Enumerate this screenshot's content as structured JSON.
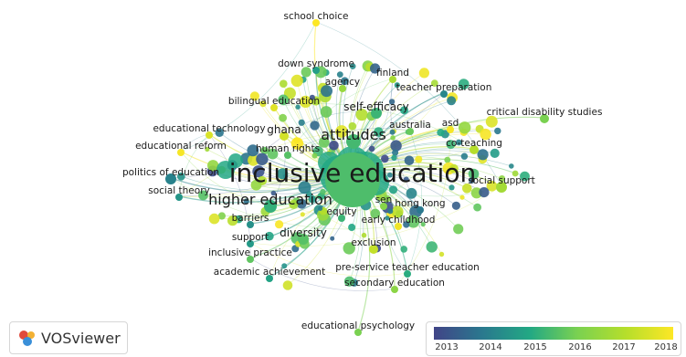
{
  "nodes": [
    {
      "id": "inclusive-education",
      "label": "inclusive education",
      "size": "huge",
      "year": 2015.5
    },
    {
      "id": "higher-education",
      "label": "higher education",
      "size": "big",
      "year": 2015.2
    },
    {
      "id": "attitudes",
      "label": "attitudes",
      "size": "big",
      "year": 2015.4
    },
    {
      "id": "self-efficacy",
      "label": "self-efficacy",
      "size": "mid",
      "year": 2015.3
    },
    {
      "id": "school-choice",
      "label": "school choice",
      "size": "small",
      "year": 2018.0
    },
    {
      "id": "down-syndrome",
      "label": "down syndrome",
      "size": "small",
      "year": 2014.8
    },
    {
      "id": "finland",
      "label": "finland",
      "size": "small",
      "year": 2016.8
    },
    {
      "id": "agency",
      "label": "agency",
      "size": "small",
      "year": 2016.5
    },
    {
      "id": "teacher-preparation",
      "label": "teacher preparation",
      "size": "small",
      "year": 2014.3
    },
    {
      "id": "bilingual-education",
      "label": "bilingual education",
      "size": "small",
      "year": 2017.6
    },
    {
      "id": "critical-disability-studies",
      "label": "critical disability studies",
      "size": "small",
      "year": 2016.0
    },
    {
      "id": "educational-technology",
      "label": "educational technology",
      "size": "small",
      "year": 2017.5
    },
    {
      "id": "ghana",
      "label": "ghana",
      "size": "mid",
      "year": 2017.4
    },
    {
      "id": "australia",
      "label": "australia",
      "size": "small",
      "year": 2015.8
    },
    {
      "id": "asd",
      "label": "asd",
      "size": "small",
      "year": 2017.9
    },
    {
      "id": "educational-reform",
      "label": "educational reform",
      "size": "small",
      "year": 2017.9
    },
    {
      "id": "human-rights",
      "label": "human rights",
      "size": "small",
      "year": 2015.6
    },
    {
      "id": "co-teaching",
      "label": "co-teaching",
      "size": "small",
      "year": 2017.0
    },
    {
      "id": "politics-of-education",
      "label": "politics of education",
      "size": "small",
      "year": 2014.2
    },
    {
      "id": "social-support",
      "label": "social support",
      "size": "small",
      "year": 2016.7
    },
    {
      "id": "social-theory",
      "label": "social theory",
      "size": "small",
      "year": 2014.6
    },
    {
      "id": "sen",
      "label": "sen",
      "size": "small",
      "year": 2016.2
    },
    {
      "id": "hong-kong",
      "label": "hong kong",
      "size": "small",
      "year": 2014.0
    },
    {
      "id": "barriers",
      "label": "barriers",
      "size": "small",
      "year": 2014.5
    },
    {
      "id": "equity",
      "label": "equity",
      "size": "small",
      "year": 2015.3
    },
    {
      "id": "early-childhood",
      "label": "early childhood",
      "size": "small",
      "year": 2017.8
    },
    {
      "id": "diversity",
      "label": "diversity",
      "size": "mid",
      "year": 2015.6
    },
    {
      "id": "support",
      "label": "support",
      "size": "small",
      "year": 2014.7
    },
    {
      "id": "exclusion",
      "label": "exclusion",
      "size": "small",
      "year": 2017.2
    },
    {
      "id": "inclusive-practice",
      "label": "inclusive practice",
      "size": "small",
      "year": 2015.7
    },
    {
      "id": "pre-service-teacher-education",
      "label": "pre-service teacher education",
      "size": "small",
      "year": 2015.1
    },
    {
      "id": "academic-achievement",
      "label": "academic achievement",
      "size": "small",
      "year": 2014.9
    },
    {
      "id": "secondary-education",
      "label": "secondary education",
      "size": "small",
      "year": 2016.3
    },
    {
      "id": "educational-psychology",
      "label": "educational psychology",
      "size": "small",
      "year": 2016.0
    }
  ],
  "logo": {
    "text": "VOSviewer"
  },
  "legend": {
    "ticks": [
      "2013",
      "2014",
      "2015",
      "2016",
      "2017",
      "2018"
    ],
    "colors": [
      "#414487",
      "#2a788e",
      "#22a884",
      "#7ad151",
      "#b5de2b",
      "#fde725"
    ]
  }
}
